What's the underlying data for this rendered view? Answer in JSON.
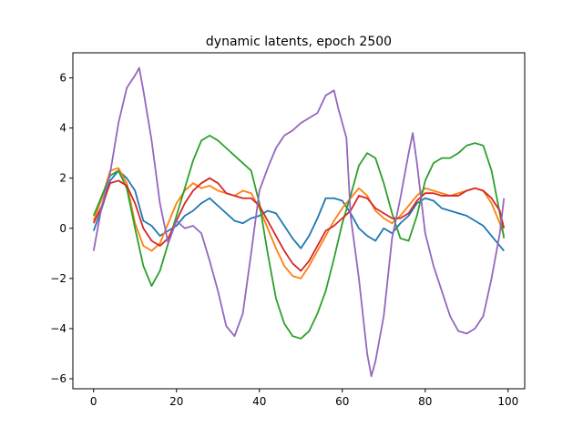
{
  "chart_data": {
    "type": "line",
    "title": "dynamic latents, epoch 2500",
    "xlabel": "",
    "ylabel": "",
    "xlim": [
      -5,
      104
    ],
    "ylim": [
      -6.4,
      7.0
    ],
    "xticks": [
      0,
      20,
      40,
      60,
      80,
      100
    ],
    "yticks": [
      -6,
      -4,
      -2,
      0,
      2,
      4,
      6
    ],
    "grid": false,
    "legend": "none",
    "series": [
      {
        "color": "#1f77b4",
        "points": [
          [
            0,
            -0.1
          ],
          [
            2,
            0.8
          ],
          [
            4,
            1.9
          ],
          [
            6,
            2.3
          ],
          [
            8,
            2.0
          ],
          [
            10,
            1.5
          ],
          [
            12,
            0.3
          ],
          [
            14,
            0.1
          ],
          [
            16,
            -0.3
          ],
          [
            18,
            -0.1
          ],
          [
            20,
            0.1
          ],
          [
            22,
            0.5
          ],
          [
            24,
            0.7
          ],
          [
            26,
            1.0
          ],
          [
            28,
            1.2
          ],
          [
            30,
            0.9
          ],
          [
            32,
            0.6
          ],
          [
            34,
            0.3
          ],
          [
            36,
            0.2
          ],
          [
            38,
            0.4
          ],
          [
            40,
            0.5
          ],
          [
            42,
            0.7
          ],
          [
            44,
            0.6
          ],
          [
            46,
            0.1
          ],
          [
            48,
            -0.4
          ],
          [
            50,
            -0.8
          ],
          [
            52,
            -0.3
          ],
          [
            54,
            0.4
          ],
          [
            56,
            1.2
          ],
          [
            58,
            1.2
          ],
          [
            60,
            1.1
          ],
          [
            62,
            0.6
          ],
          [
            64,
            0.0
          ],
          [
            66,
            -0.3
          ],
          [
            68,
            -0.5
          ],
          [
            70,
            0.0
          ],
          [
            72,
            -0.2
          ],
          [
            74,
            0.2
          ],
          [
            76,
            0.5
          ],
          [
            78,
            1.0
          ],
          [
            80,
            1.2
          ],
          [
            82,
            1.1
          ],
          [
            84,
            0.8
          ],
          [
            86,
            0.7
          ],
          [
            88,
            0.6
          ],
          [
            90,
            0.5
          ],
          [
            92,
            0.3
          ],
          [
            94,
            0.1
          ],
          [
            96,
            -0.3
          ],
          [
            98,
            -0.7
          ],
          [
            99,
            -0.9
          ]
        ]
      },
      {
        "color": "#ff7f0e",
        "points": [
          [
            0,
            0.3
          ],
          [
            2,
            1.2
          ],
          [
            4,
            2.3
          ],
          [
            6,
            2.4
          ],
          [
            8,
            1.8
          ],
          [
            10,
            0.2
          ],
          [
            12,
            -0.7
          ],
          [
            14,
            -0.9
          ],
          [
            16,
            -0.6
          ],
          [
            18,
            0.2
          ],
          [
            20,
            1.0
          ],
          [
            22,
            1.5
          ],
          [
            24,
            1.8
          ],
          [
            26,
            1.6
          ],
          [
            28,
            1.7
          ],
          [
            30,
            1.5
          ],
          [
            32,
            1.4
          ],
          [
            34,
            1.3
          ],
          [
            36,
            1.5
          ],
          [
            38,
            1.4
          ],
          [
            40,
            0.8
          ],
          [
            42,
            0.0
          ],
          [
            44,
            -0.8
          ],
          [
            46,
            -1.5
          ],
          [
            48,
            -1.9
          ],
          [
            50,
            -2.0
          ],
          [
            52,
            -1.5
          ],
          [
            54,
            -0.9
          ],
          [
            56,
            -0.3
          ],
          [
            58,
            0.3
          ],
          [
            60,
            0.8
          ],
          [
            62,
            1.2
          ],
          [
            64,
            1.6
          ],
          [
            66,
            1.3
          ],
          [
            68,
            0.7
          ],
          [
            70,
            0.4
          ],
          [
            72,
            0.2
          ],
          [
            74,
            0.5
          ],
          [
            76,
            0.9
          ],
          [
            78,
            1.3
          ],
          [
            80,
            1.6
          ],
          [
            82,
            1.5
          ],
          [
            84,
            1.4
          ],
          [
            86,
            1.3
          ],
          [
            88,
            1.4
          ],
          [
            90,
            1.5
          ],
          [
            92,
            1.6
          ],
          [
            94,
            1.5
          ],
          [
            96,
            1.0
          ],
          [
            98,
            0.2
          ],
          [
            99,
            -0.3
          ]
        ]
      },
      {
        "color": "#2ca02c",
        "points": [
          [
            0,
            0.5
          ],
          [
            2,
            1.3
          ],
          [
            4,
            2.1
          ],
          [
            6,
            2.3
          ],
          [
            8,
            1.6
          ],
          [
            10,
            0.0
          ],
          [
            12,
            -1.5
          ],
          [
            14,
            -2.3
          ],
          [
            16,
            -1.7
          ],
          [
            18,
            -0.6
          ],
          [
            20,
            0.5
          ],
          [
            22,
            1.6
          ],
          [
            24,
            2.7
          ],
          [
            26,
            3.5
          ],
          [
            28,
            3.7
          ],
          [
            30,
            3.5
          ],
          [
            32,
            3.2
          ],
          [
            34,
            2.9
          ],
          [
            36,
            2.6
          ],
          [
            38,
            2.3
          ],
          [
            40,
            1.0
          ],
          [
            42,
            -1.0
          ],
          [
            44,
            -2.8
          ],
          [
            46,
            -3.8
          ],
          [
            48,
            -4.3
          ],
          [
            50,
            -4.4
          ],
          [
            52,
            -4.1
          ],
          [
            54,
            -3.4
          ],
          [
            56,
            -2.5
          ],
          [
            58,
            -1.2
          ],
          [
            60,
            0.2
          ],
          [
            62,
            1.3
          ],
          [
            64,
            2.5
          ],
          [
            66,
            3.0
          ],
          [
            68,
            2.8
          ],
          [
            70,
            1.8
          ],
          [
            72,
            0.6
          ],
          [
            74,
            -0.4
          ],
          [
            76,
            -0.5
          ],
          [
            78,
            0.5
          ],
          [
            80,
            1.9
          ],
          [
            82,
            2.6
          ],
          [
            84,
            2.8
          ],
          [
            86,
            2.8
          ],
          [
            88,
            3.0
          ],
          [
            90,
            3.3
          ],
          [
            92,
            3.4
          ],
          [
            94,
            3.3
          ],
          [
            96,
            2.3
          ],
          [
            98,
            0.6
          ],
          [
            99,
            -0.4
          ]
        ]
      },
      {
        "color": "#d62728",
        "points": [
          [
            0,
            0.2
          ],
          [
            2,
            0.9
          ],
          [
            4,
            1.8
          ],
          [
            6,
            1.9
          ],
          [
            8,
            1.7
          ],
          [
            10,
            1.0
          ],
          [
            12,
            0.0
          ],
          [
            14,
            -0.5
          ],
          [
            16,
            -0.7
          ],
          [
            18,
            -0.4
          ],
          [
            20,
            0.3
          ],
          [
            22,
            1.0
          ],
          [
            24,
            1.5
          ],
          [
            26,
            1.8
          ],
          [
            28,
            2.0
          ],
          [
            30,
            1.8
          ],
          [
            32,
            1.4
          ],
          [
            34,
            1.3
          ],
          [
            36,
            1.2
          ],
          [
            38,
            1.2
          ],
          [
            40,
            0.9
          ],
          [
            42,
            0.3
          ],
          [
            44,
            -0.3
          ],
          [
            46,
            -0.9
          ],
          [
            48,
            -1.4
          ],
          [
            50,
            -1.7
          ],
          [
            52,
            -1.3
          ],
          [
            54,
            -0.7
          ],
          [
            56,
            -0.1
          ],
          [
            58,
            0.1
          ],
          [
            60,
            0.4
          ],
          [
            62,
            0.7
          ],
          [
            64,
            1.3
          ],
          [
            66,
            1.2
          ],
          [
            68,
            0.8
          ],
          [
            70,
            0.6
          ],
          [
            72,
            0.4
          ],
          [
            74,
            0.4
          ],
          [
            76,
            0.6
          ],
          [
            78,
            1.1
          ],
          [
            80,
            1.4
          ],
          [
            82,
            1.4
          ],
          [
            84,
            1.3
          ],
          [
            86,
            1.3
          ],
          [
            88,
            1.3
          ],
          [
            90,
            1.5
          ],
          [
            92,
            1.6
          ],
          [
            94,
            1.5
          ],
          [
            96,
            1.2
          ],
          [
            98,
            0.7
          ],
          [
            99,
            0.0
          ]
        ]
      },
      {
        "color": "#9467bd",
        "points": [
          [
            0,
            -0.9
          ],
          [
            2,
            0.9
          ],
          [
            4,
            2.2
          ],
          [
            6,
            4.2
          ],
          [
            8,
            5.6
          ],
          [
            10,
            6.1
          ],
          [
            11,
            6.4
          ],
          [
            12,
            5.5
          ],
          [
            14,
            3.5
          ],
          [
            16,
            1.0
          ],
          [
            18,
            -0.6
          ],
          [
            20,
            0.3
          ],
          [
            22,
            0.0
          ],
          [
            24,
            0.1
          ],
          [
            26,
            -0.2
          ],
          [
            28,
            -1.3
          ],
          [
            30,
            -2.5
          ],
          [
            32,
            -3.9
          ],
          [
            34,
            -4.3
          ],
          [
            36,
            -3.4
          ],
          [
            38,
            -1.0
          ],
          [
            40,
            1.5
          ],
          [
            42,
            2.4
          ],
          [
            44,
            3.2
          ],
          [
            46,
            3.7
          ],
          [
            48,
            3.9
          ],
          [
            50,
            4.2
          ],
          [
            52,
            4.4
          ],
          [
            54,
            4.6
          ],
          [
            56,
            5.3
          ],
          [
            58,
            5.5
          ],
          [
            59,
            4.8
          ],
          [
            61,
            3.6
          ],
          [
            62,
            0.5
          ],
          [
            64,
            -2.0
          ],
          [
            66,
            -5.0
          ],
          [
            67,
            -5.9
          ],
          [
            68,
            -5.3
          ],
          [
            70,
            -3.5
          ],
          [
            72,
            -0.4
          ],
          [
            74,
            1.2
          ],
          [
            76,
            3.0
          ],
          [
            77,
            3.8
          ],
          [
            78,
            2.6
          ],
          [
            80,
            -0.2
          ],
          [
            82,
            -1.5
          ],
          [
            84,
            -2.5
          ],
          [
            86,
            -3.5
          ],
          [
            88,
            -4.1
          ],
          [
            90,
            -4.2
          ],
          [
            92,
            -4.0
          ],
          [
            94,
            -3.5
          ],
          [
            96,
            -2.0
          ],
          [
            98,
            -0.2
          ],
          [
            99,
            1.2
          ]
        ]
      }
    ]
  }
}
